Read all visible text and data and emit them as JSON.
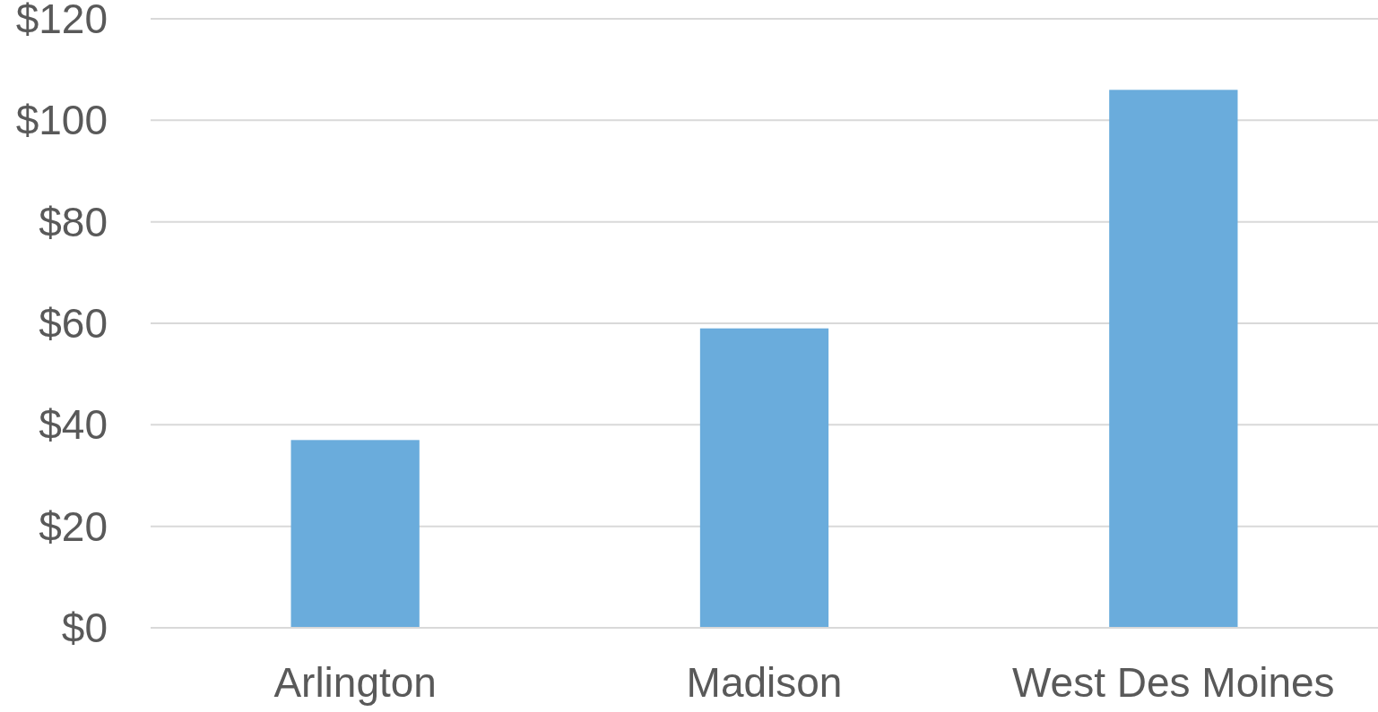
{
  "chart_data": {
    "type": "bar",
    "categories": [
      "Arlington",
      "Madison",
      "West Des Moines"
    ],
    "values": [
      37,
      59,
      106
    ],
    "color": "#6aacdc",
    "ylim": [
      0,
      120
    ],
    "yticks": [
      {
        "value": 0,
        "label": "$0"
      },
      {
        "value": 20,
        "label": "$20"
      },
      {
        "value": 40,
        "label": "$40"
      },
      {
        "value": 60,
        "label": "$60"
      },
      {
        "value": 80,
        "label": "$80"
      },
      {
        "value": 100,
        "label": "$100"
      },
      {
        "value": 120,
        "label": "$120"
      }
    ],
    "grid": "y"
  }
}
